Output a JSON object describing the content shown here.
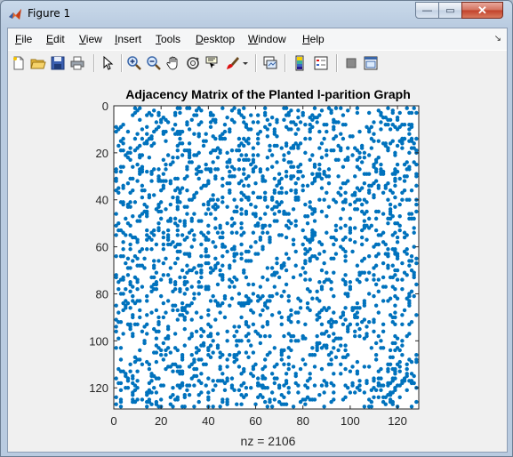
{
  "window": {
    "title": "Figure 1",
    "controls": {
      "minimize": "—",
      "maximize": "▭",
      "close": "✕"
    }
  },
  "menubar": {
    "items": [
      {
        "id": "file",
        "hot": "F",
        "rest": "ile"
      },
      {
        "id": "edit",
        "hot": "E",
        "rest": "dit"
      },
      {
        "id": "view",
        "hot": "V",
        "rest": "iew"
      },
      {
        "id": "insert",
        "hot": "I",
        "rest": "nsert"
      },
      {
        "id": "tools",
        "hot": "T",
        "rest": "ools"
      },
      {
        "id": "desktop",
        "hot": "D",
        "rest": "esktop"
      },
      {
        "id": "window",
        "hot": "W",
        "rest": "indow"
      },
      {
        "id": "help",
        "hot": "H",
        "rest": "elp"
      }
    ],
    "overflow_arrow": "↘"
  },
  "toolbar": {
    "buttons": [
      "new-figure-icon",
      "open-file-icon",
      "save-icon",
      "print-icon",
      "select-arrow-icon",
      "zoom-in-icon",
      "zoom-out-icon",
      "pan-hand-icon",
      "rotate-3d-icon",
      "data-cursor-icon",
      "brush-icon",
      "brush-dropdown-icon",
      "link-plot-icon",
      "insert-colorbar-icon",
      "insert-legend-icon",
      "hide-plot-tools-icon",
      "show-plot-tools-icon"
    ]
  },
  "chart_data": {
    "type": "scatter",
    "title": "Adjacency Matrix of the Planted l-parition Graph",
    "xlabel": "nz = 2106",
    "ylabel": "",
    "xlim": [
      0,
      129
    ],
    "ylim": [
      0,
      129
    ],
    "y_reversed": true,
    "xticks": [
      0,
      20,
      40,
      60,
      80,
      100,
      120
    ],
    "yticks": [
      0,
      20,
      40,
      60,
      80,
      100,
      120
    ],
    "matrix_size": 128,
    "nonzeros": 2106,
    "marker_color": "#0072bd",
    "grid": false,
    "legend": "none",
    "points_note_seed": 20161
  },
  "colors": {
    "axes_bg": "#ffffff",
    "axes_border": "#262626",
    "figure_bg": "#f0f0f0"
  }
}
